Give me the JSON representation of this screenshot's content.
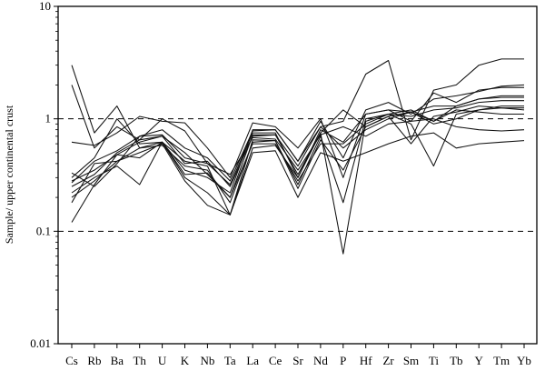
{
  "chart_data": {
    "type": "line",
    "title": "",
    "xlabel": "",
    "ylabel": "Sample/ upper continental crust",
    "y_scale": "log",
    "ylim": [
      0.01,
      10
    ],
    "yticks": [
      0.01,
      0.1,
      1,
      10
    ],
    "ytick_labels": [
      "0.01",
      "0.1",
      "1",
      "10"
    ],
    "reference_lines": [
      1,
      0.1
    ],
    "grid": false,
    "legend": "none",
    "categories": [
      "Cs",
      "Rb",
      "Ba",
      "Th",
      "U",
      "K",
      "Nb",
      "Ta",
      "La",
      "Ce",
      "Sr",
      "Nd",
      "P",
      "Hf",
      "Zr",
      "Sm",
      "Ti",
      "Tb",
      "Y",
      "Tm",
      "Yb"
    ],
    "series": [
      {
        "values": [
          3.0,
          0.75,
          1.3,
          0.55,
          0.62,
          0.42,
          0.38,
          0.14,
          0.55,
          0.58,
          0.3,
          0.75,
          1.2,
          0.85,
          1.05,
          1.15,
          0.95,
          1.3,
          1.5,
          1.55,
          1.55
        ]
      },
      {
        "values": [
          2.0,
          0.55,
          0.85,
          0.65,
          0.7,
          0.4,
          0.42,
          0.25,
          0.7,
          0.72,
          0.38,
          0.85,
          0.95,
          2.5,
          3.3,
          0.65,
          1.8,
          2.0,
          3.0,
          3.4,
          3.4
        ]
      },
      {
        "values": [
          0.62,
          0.58,
          0.75,
          1.05,
          0.95,
          0.92,
          0.55,
          0.3,
          0.92,
          0.85,
          0.55,
          1.0,
          0.3,
          1.1,
          1.2,
          0.95,
          1.7,
          1.4,
          1.8,
          1.9,
          1.9
        ]
      },
      {
        "values": [
          0.3,
          0.45,
          1.0,
          0.6,
          0.62,
          0.35,
          0.3,
          0.22,
          0.8,
          0.8,
          0.42,
          0.95,
          0.45,
          1.2,
          1.4,
          1.1,
          1.5,
          1.6,
          1.75,
          1.95,
          2.0
        ]
      },
      {
        "values": [
          0.25,
          0.32,
          0.5,
          0.65,
          1.0,
          0.78,
          0.4,
          0.26,
          0.75,
          0.75,
          0.3,
          0.8,
          0.62,
          1.1,
          1.2,
          1.15,
          1.3,
          1.3,
          1.5,
          1.6,
          1.6
        ]
      },
      {
        "values": [
          0.2,
          0.28,
          0.42,
          0.55,
          0.58,
          0.38,
          0.35,
          0.18,
          0.62,
          0.64,
          0.26,
          0.7,
          0.18,
          1.0,
          1.1,
          1.05,
          1.2,
          1.25,
          1.4,
          1.45,
          1.45
        ]
      },
      {
        "values": [
          0.12,
          0.26,
          0.48,
          0.45,
          0.62,
          0.32,
          0.33,
          0.2,
          0.72,
          0.72,
          0.32,
          0.75,
          0.063,
          0.95,
          1.1,
          0.9,
          0.38,
          1.1,
          1.2,
          1.25,
          1.25
        ]
      },
      {
        "values": [
          0.27,
          0.42,
          0.52,
          0.7,
          0.8,
          0.55,
          0.45,
          0.28,
          0.78,
          0.8,
          0.42,
          0.85,
          0.55,
          0.8,
          1.0,
          1.15,
          0.9,
          1.0,
          1.2,
          1.3,
          1.3
        ]
      },
      {
        "values": [
          0.33,
          0.25,
          0.4,
          0.7,
          0.72,
          0.45,
          0.4,
          0.32,
          0.68,
          0.66,
          0.35,
          0.72,
          0.85,
          0.7,
          0.9,
          0.95,
          1.0,
          0.85,
          0.8,
          0.78,
          0.8
        ]
      },
      {
        "values": [
          0.22,
          0.3,
          0.38,
          0.26,
          0.62,
          0.3,
          0.22,
          0.14,
          0.5,
          0.52,
          0.2,
          0.5,
          0.42,
          0.5,
          0.6,
          0.7,
          0.75,
          0.55,
          0.6,
          0.62,
          0.64
        ]
      },
      {
        "values": [
          0.28,
          0.35,
          0.48,
          0.62,
          0.7,
          0.5,
          0.32,
          0.2,
          0.6,
          0.6,
          0.28,
          0.6,
          0.6,
          0.9,
          1.1,
          1.2,
          0.95,
          1.2,
          1.15,
          1.1,
          1.1
        ]
      },
      {
        "values": [
          0.18,
          0.4,
          0.42,
          0.5,
          0.6,
          0.28,
          0.17,
          0.14,
          0.65,
          0.64,
          0.24,
          0.65,
          0.35,
          0.85,
          1.05,
          0.6,
          1.05,
          1.15,
          1.3,
          1.25,
          1.2
        ]
      }
    ]
  }
}
